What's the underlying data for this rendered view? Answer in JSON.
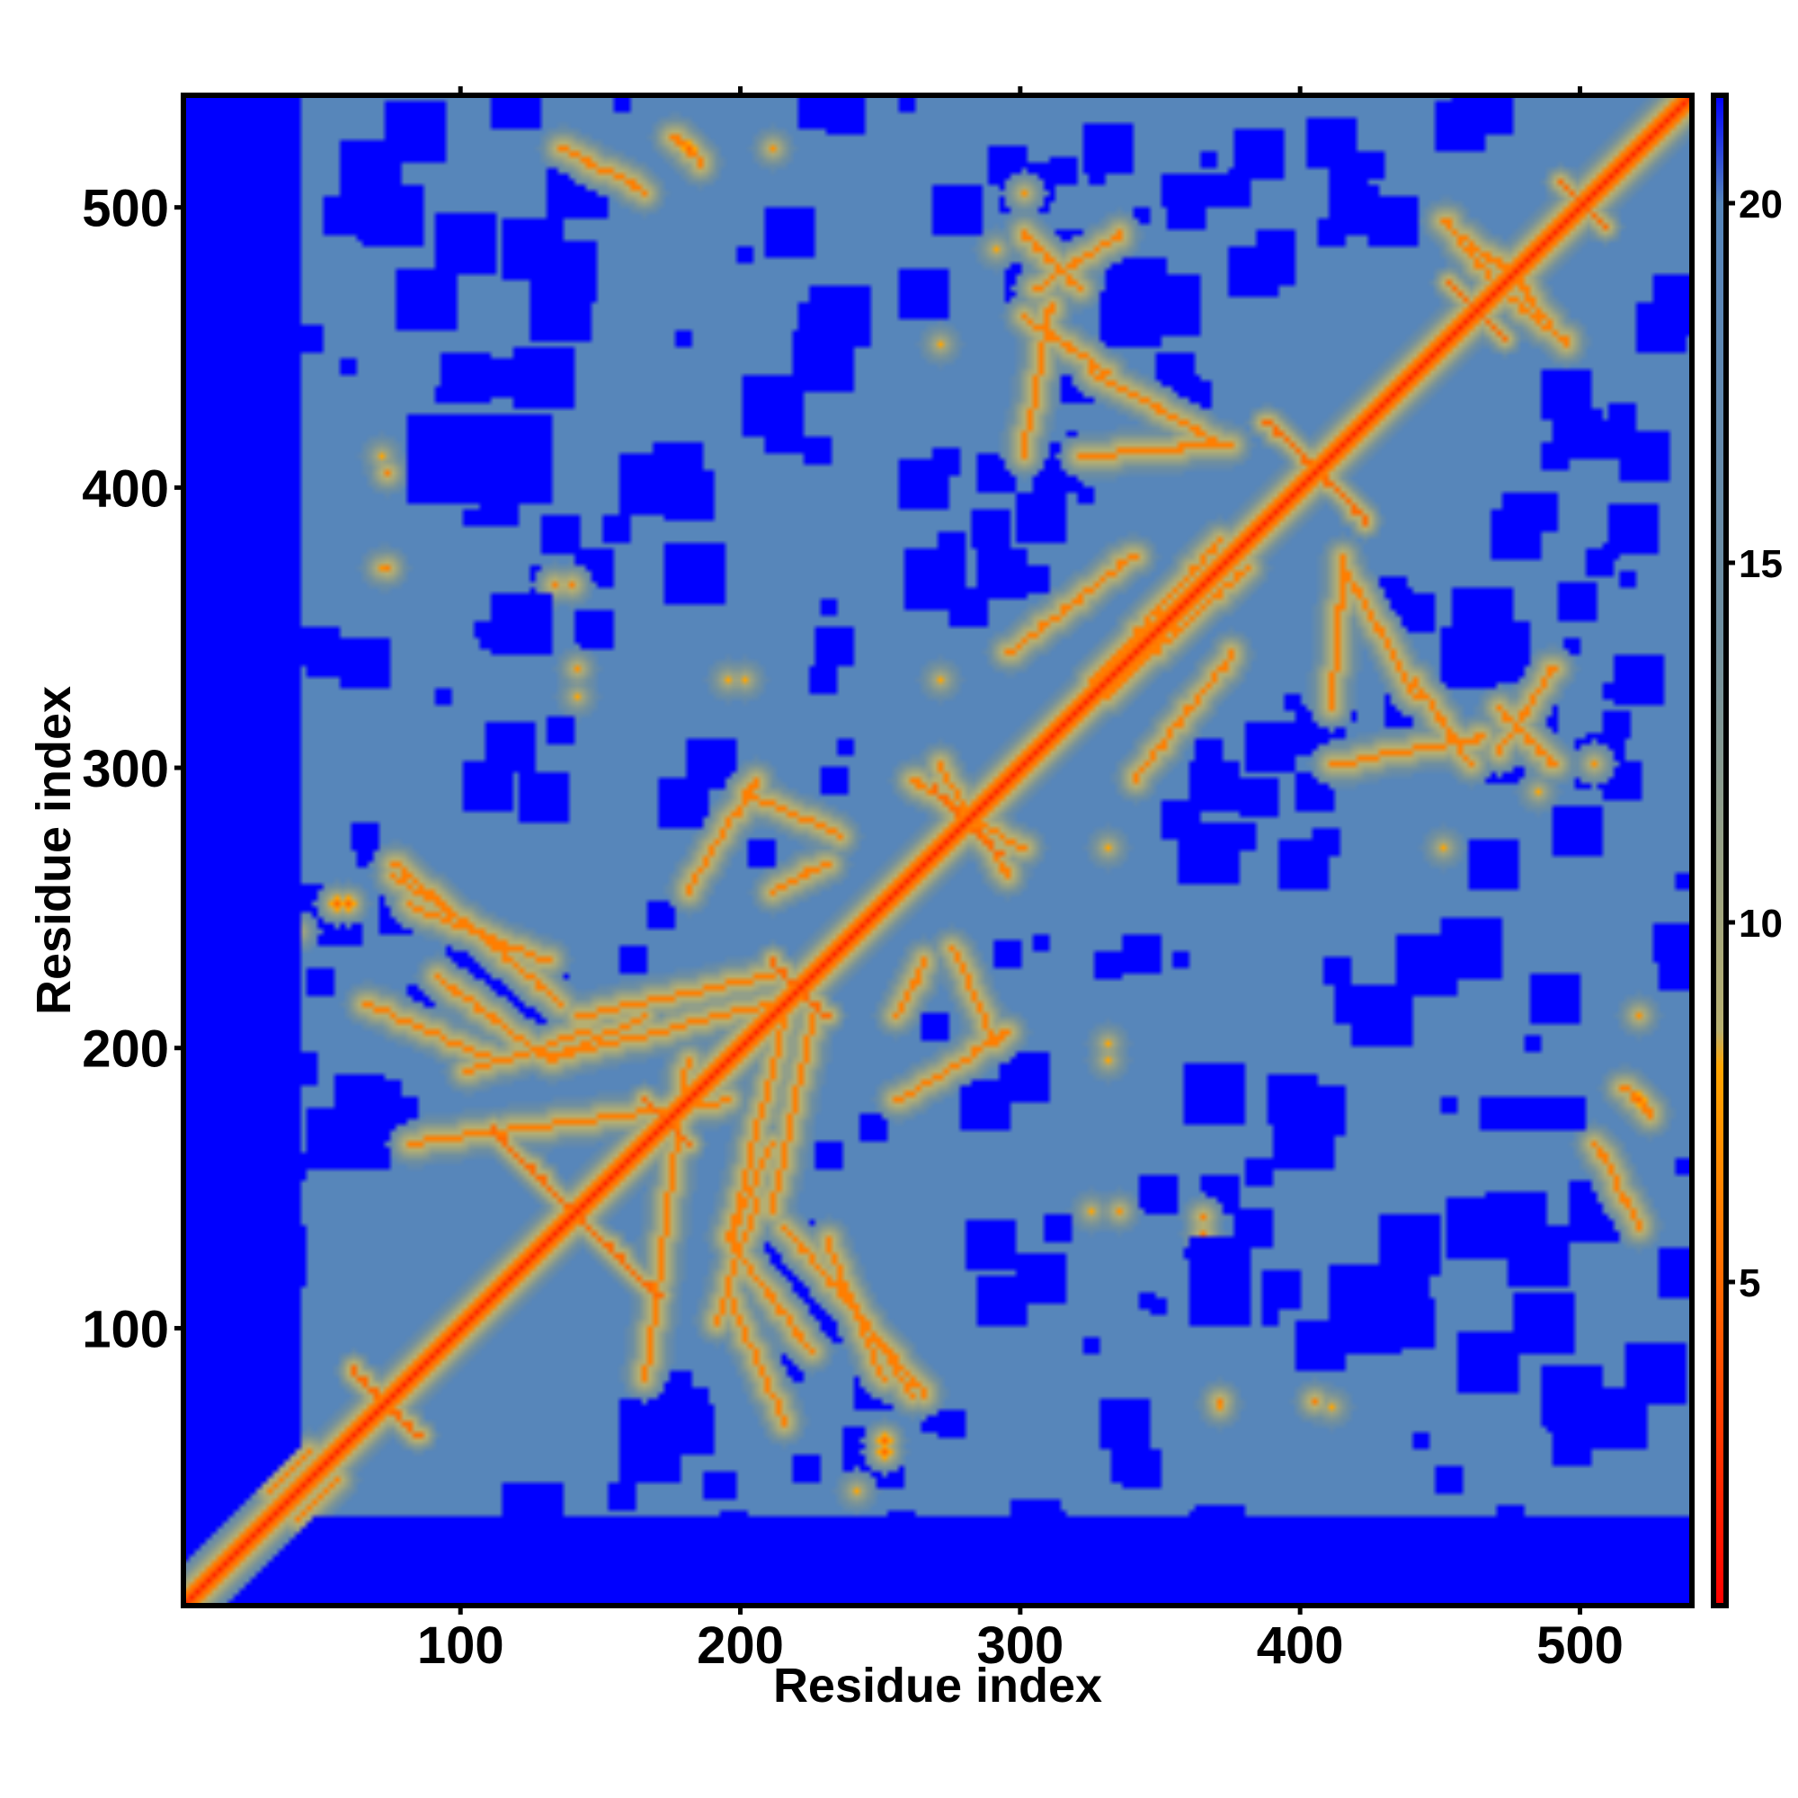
{
  "chart_data": {
    "type": "heatmap",
    "title": "",
    "xlabel": "Residue index",
    "ylabel": "Residue index",
    "xlim": [
      1,
      540
    ],
    "ylim": [
      1,
      540
    ],
    "x_ticks": [
      100,
      200,
      300,
      400,
      500
    ],
    "y_ticks": [
      100,
      200,
      300,
      400,
      500
    ],
    "colorbar": {
      "ticks": [
        5,
        10,
        15,
        20
      ],
      "range": [
        0.5,
        21.5
      ],
      "colors": [
        {
          "value": 0.5,
          "color": "#ff0000"
        },
        {
          "value": 5,
          "color": "#ff6a00"
        },
        {
          "value": 8,
          "color": "#ffa500"
        },
        {
          "value": 8.5,
          "color": "#b8b070"
        },
        {
          "value": 14,
          "color": "#6f8fa0"
        },
        {
          "value": 19,
          "color": "#5a86b8"
        },
        {
          "value": 20,
          "color": "#5485bb"
        },
        {
          "value": 21.5,
          "color": "#0000ff"
        }
      ],
      "saturation_color": "#0000ff"
    },
    "background_value": 21.5,
    "contact_features": [
      {
        "kind": "diagonal",
        "from": [
          1,
          1
        ],
        "to": [
          540,
          540
        ],
        "value": 2
      },
      {
        "kind": "cross",
        "center": [
          140,
          140
        ],
        "half_len": 30,
        "value": 5
      },
      {
        "kind": "cross",
        "center": [
          72,
          72
        ],
        "half_len": 12,
        "value": 5
      },
      {
        "kind": "cross",
        "center": [
          405,
          405
        ],
        "half_len": 18,
        "value": 5
      },
      {
        "kind": "cross",
        "center": [
          173,
          173
        ],
        "half_len": 8,
        "value": 5
      },
      {
        "kind": "cross",
        "center": [
          220,
          220
        ],
        "half_len": 10,
        "value": 5
      },
      {
        "kind": "cross",
        "center": [
          280,
          280
        ],
        "half_len": 12,
        "value": 5
      },
      {
        "kind": "cross",
        "center": [
          500,
          500
        ],
        "half_len": 8,
        "value": 5
      },
      {
        "kind": "cross",
        "center": [
          462,
          462
        ],
        "half_len": 10,
        "value": 5
      },
      {
        "kind": "band",
        "from": [
          75,
          265
        ],
        "to": [
          135,
          215
        ],
        "value": 6
      },
      {
        "kind": "band",
        "from": [
          90,
          225
        ],
        "to": [
          130,
          195
        ],
        "value": 6
      },
      {
        "kind": "band",
        "from": [
          130,
          195
        ],
        "to": [
          165,
          210
        ],
        "value": 6
      },
      {
        "kind": "band",
        "from": [
          195,
          130
        ],
        "to": [
          215,
          210
        ],
        "value": 6
      },
      {
        "kind": "band",
        "from": [
          210,
          140
        ],
        "to": [
          225,
          210
        ],
        "value": 6
      },
      {
        "kind": "band",
        "from": [
          235,
          115
        ],
        "to": [
          260,
          75
        ],
        "value": 6
      },
      {
        "kind": "band",
        "from": [
          230,
          130
        ],
        "to": [
          250,
          80
        ],
        "value": 6
      },
      {
        "kind": "band",
        "from": [
          195,
          110
        ],
        "to": [
          215,
          65
        ],
        "value": 6
      },
      {
        "kind": "band",
        "from": [
          180,
          195
        ],
        "to": [
          165,
          80
        ],
        "value": 6
      },
      {
        "kind": "band",
        "from": [
          190,
          100
        ],
        "to": [
          205,
          145
        ],
        "value": 6
      },
      {
        "kind": "band",
        "from": [
          255,
          180
        ],
        "to": [
          295,
          205
        ],
        "value": 6
      },
      {
        "kind": "band",
        "from": [
          255,
          210
        ],
        "to": [
          265,
          230
        ],
        "value": 6
      },
      {
        "kind": "band",
        "from": [
          270,
          300
        ],
        "to": [
          295,
          260
        ],
        "value": 6
      },
      {
        "kind": "band",
        "from": [
          200,
          290
        ],
        "to": [
          235,
          275
        ],
        "value": 6
      },
      {
        "kind": "band",
        "from": [
          330,
          325
        ],
        "to": [
          380,
          370
        ],
        "value": 6
      },
      {
        "kind": "band",
        "from": [
          340,
          295
        ],
        "to": [
          375,
          340
        ],
        "value": 6
      },
      {
        "kind": "band",
        "from": [
          410,
          300
        ],
        "to": [
          465,
          310
        ],
        "value": 6
      },
      {
        "kind": "band",
        "from": [
          415,
          370
        ],
        "to": [
          440,
          325
        ],
        "value": 6
      },
      {
        "kind": "band",
        "from": [
          300,
          460
        ],
        "to": [
          330,
          440
        ],
        "value": 6
      },
      {
        "kind": "band",
        "from": [
          305,
          470
        ],
        "to": [
          335,
          490
        ],
        "value": 6
      },
      {
        "kind": "band",
        "from": [
          320,
          410
        ],
        "to": [
          375,
          415
        ],
        "value": 6
      },
      {
        "kind": "band",
        "from": [
          470,
          320
        ],
        "to": [
          490,
          300
        ],
        "value": 6
      },
      {
        "kind": "band",
        "from": [
          455,
          490
        ],
        "to": [
          480,
          470
        ],
        "value": 6
      },
      {
        "kind": "band",
        "from": [
          470,
          470
        ],
        "to": [
          495,
          450
        ],
        "value": 6
      },
      {
        "kind": "band",
        "from": [
          175,
          525
        ],
        "to": [
          185,
          515
        ],
        "value": 6
      },
      {
        "kind": "band",
        "from": [
          135,
          520
        ],
        "to": [
          165,
          505
        ],
        "value": 6
      },
      {
        "kind": "band",
        "from": [
          30,
          40
        ],
        "to": [
          45,
          55
        ],
        "value": 6
      }
    ],
    "spots": [
      {
        "center": [
          133,
          365
        ],
        "value": 6
      },
      {
        "center": [
          70,
          370
        ],
        "value": 7
      },
      {
        "center": [
          55,
          250
        ],
        "value": 5
      },
      {
        "center": [
          250,
          58
        ],
        "value": 5
      },
      {
        "center": [
          140,
          335
        ],
        "value": 7
      },
      {
        "center": [
          365,
          138
        ],
        "value": 6
      },
      {
        "center": [
          405,
          72
        ],
        "value": 6
      },
      {
        "center": [
          370,
          72
        ],
        "value": 6
      },
      {
        "center": [
          325,
          140
        ],
        "value": 8
      },
      {
        "center": [
          330,
          200
        ],
        "value": 8
      },
      {
        "center": [
          330,
          270
        ],
        "value": 8
      },
      {
        "center": [
          450,
          270
        ],
        "value": 8
      },
      {
        "center": [
          485,
          290
        ],
        "value": 8
      },
      {
        "center": [
          520,
          180
        ],
        "value": 5
      },
      {
        "center": [
          520,
          210
        ],
        "value": 7
      },
      {
        "center": [
          195,
          330
        ],
        "value": 8
      },
      {
        "center": [
          70,
          410
        ],
        "value": 8
      },
      {
        "center": [
          300,
          505
        ],
        "value": 7
      },
      {
        "center": [
          40,
          240
        ],
        "value": 8
      }
    ],
    "void_regions": [
      {
        "x": [
          1,
          40
        ],
        "y": [
          1,
          540
        ],
        "value": 21.5
      },
      {
        "x": [
          1,
          540
        ],
        "y": [
          1,
          30
        ],
        "value": 21.5
      },
      {
        "x": [
          80,
          130
        ],
        "y": [
          395,
          425
        ],
        "value": 21.5
      },
      {
        "x": [
          110,
          130
        ],
        "y": [
          340,
          360
        ],
        "value": 21.5
      },
      {
        "x": [
          360,
          380
        ],
        "y": [
          100,
          130
        ],
        "value": 21.5
      },
      {
        "x": [
          410,
          430
        ],
        "y": [
          90,
          120
        ],
        "value": 21.5
      },
      {
        "x": [
          465,
          500
        ],
        "y": [
          170,
          180
        ],
        "value": 21.5
      },
      {
        "x": [
          220,
          245
        ],
        "y": [
          455,
          465
        ],
        "value": 21.5
      },
      {
        "x": [
          350,
          380
        ],
        "y": [
          500,
          510
        ],
        "value": 21.5
      }
    ]
  }
}
